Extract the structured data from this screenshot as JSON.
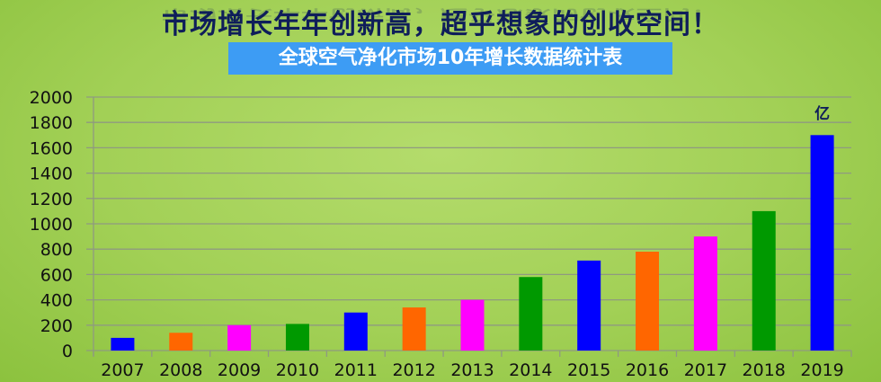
{
  "header": {
    "title": "市场增长年年创新高，超乎想象的创收空间！",
    "subtitle": "全球空气净化市场10年增长数据统计表"
  },
  "chart_data": {
    "type": "bar",
    "title": "全球空气净化市场10年增长数据统计表",
    "unit_label": "亿",
    "categories": [
      "2007",
      "2008",
      "2009",
      "2010",
      "2011",
      "2012",
      "2013",
      "2014",
      "2015",
      "2016",
      "2017",
      "2018",
      "2019"
    ],
    "values": [
      100,
      140,
      200,
      210,
      300,
      340,
      400,
      580,
      710,
      780,
      900,
      1100,
      1700
    ],
    "colors": [
      "#0000ff",
      "#ff6600",
      "#ff00ff",
      "#009900",
      "#0000ff",
      "#ff6600",
      "#ff00ff",
      "#009900",
      "#0000ff",
      "#ff6600",
      "#ff00ff",
      "#009900",
      "#0000ff"
    ],
    "ylim": [
      0,
      2000
    ],
    "yticks": [
      "0",
      "200",
      "400",
      "600",
      "800",
      "1000",
      "1200",
      "1400",
      "1600",
      "1800",
      "2000"
    ],
    "grid": true,
    "legend": "none"
  }
}
